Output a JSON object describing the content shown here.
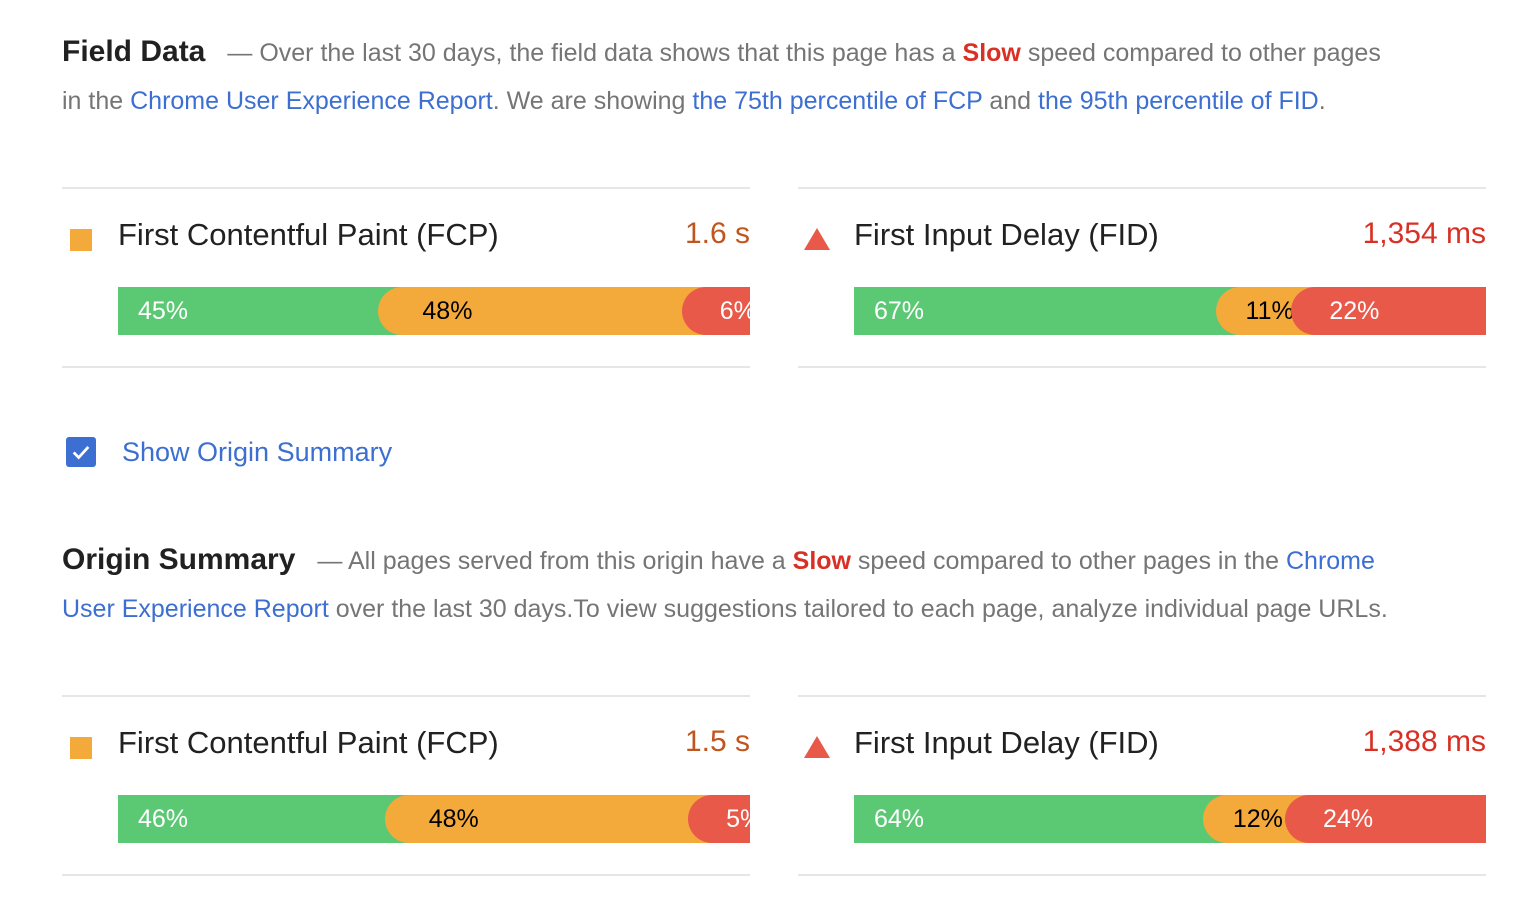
{
  "field_data": {
    "title": "Field Data",
    "text_1": "— Over the last 30 days, the field data shows that this page has a ",
    "speed": "Slow",
    "text_2": " speed compared to other pages in the ",
    "link_crux": "Chrome User Experience Report",
    "text_3": ". We are showing ",
    "link_fcp": "the 75th percentile of FCP",
    "text_4": " and ",
    "link_fid": "the 95th percentile of FID",
    "text_5": ".",
    "metrics": [
      {
        "name": "First Contentful Paint (FCP)",
        "value": "1.6 s",
        "icon": "orange-square-icon",
        "distribution": [
          {
            "label": "45%",
            "percent": 45
          },
          {
            "label": "48%",
            "percent": 48
          },
          {
            "label": "6%",
            "percent": 6
          }
        ]
      },
      {
        "name": "First Input Delay (FID)",
        "value": "1,354 ms",
        "icon": "red-triangle-icon",
        "distribution": [
          {
            "label": "67%",
            "percent": 67
          },
          {
            "label": "11%",
            "percent": 11
          },
          {
            "label": "22%",
            "percent": 22
          }
        ]
      }
    ]
  },
  "origin_toggle": {
    "label": "Show Origin Summary",
    "checked": true
  },
  "origin_summary": {
    "title": "Origin Summary",
    "text_1": "— All pages served from this origin have a ",
    "speed": "Slow",
    "text_2": " speed compared to other pages in the ",
    "link_crux": "Chrome User Experience Report",
    "text_3": " over the last 30 days.To view suggestions tailored to each page, analyze individual page URLs.",
    "metrics": [
      {
        "name": "First Contentful Paint (FCP)",
        "value": "1.5 s",
        "icon": "orange-square-icon",
        "distribution": [
          {
            "label": "46%",
            "percent": 46
          },
          {
            "label": "48%",
            "percent": 48
          },
          {
            "label": "5%",
            "percent": 5
          }
        ]
      },
      {
        "name": "First Input Delay (FID)",
        "value": "1,388 ms",
        "icon": "red-triangle-icon",
        "distribution": [
          {
            "label": "64%",
            "percent": 64
          },
          {
            "label": "12%",
            "percent": 12
          },
          {
            "label": "24%",
            "percent": 24
          }
        ]
      }
    ]
  },
  "colors": {
    "good": "#5bc874",
    "average": "#f4a93b",
    "poor": "#e8594a",
    "link": "#3c6fd1",
    "slow": "#d93025"
  }
}
